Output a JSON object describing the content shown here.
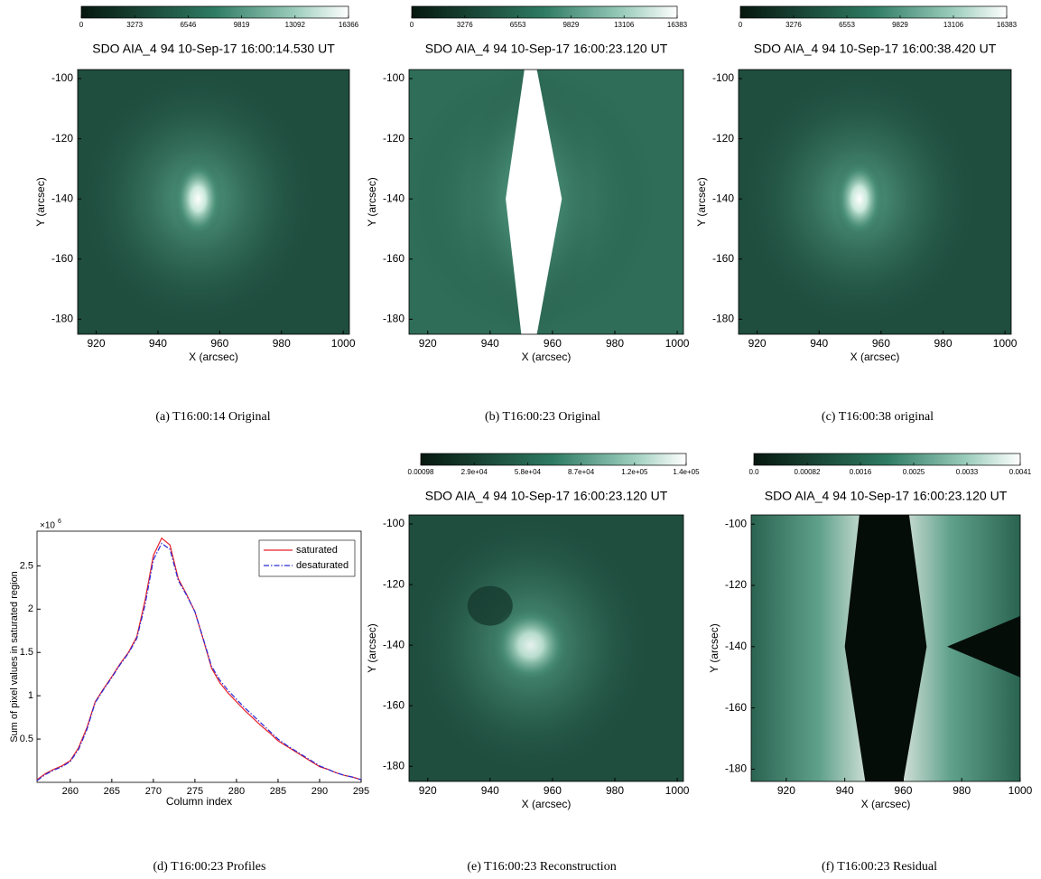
{
  "panels": [
    {
      "colorbar": {
        "lim": [
          0,
          16366
        ],
        "ticks": [
          0,
          3273,
          6546,
          9819,
          13092,
          16366
        ]
      },
      "title": "SDO AIA_4 94 10-Sep-17 16:00:14.530 UT",
      "xlabel": "X (arcsec)",
      "ylabel": "Y (arcsec)",
      "xlim": [
        914,
        1002
      ],
      "ylim": [
        -185,
        -97
      ],
      "xticks": [
        920,
        940,
        960,
        980,
        1000
      ],
      "yticks": [
        -180,
        -160,
        -140,
        -120,
        -100
      ],
      "caption": "(a)  T16:00:14 Original"
    },
    {
      "colorbar": {
        "lim": [
          0,
          16383
        ],
        "ticks": [
          0,
          3276,
          6553,
          9829,
          13106,
          16383
        ]
      },
      "title": "SDO AIA_4 94 10-Sep-17 16:00:23.120 UT",
      "xlabel": "X (arcsec)",
      "ylabel": "Y (arcsec)",
      "xlim": [
        914,
        1002
      ],
      "ylim": [
        -185,
        -97
      ],
      "xticks": [
        920,
        940,
        960,
        980,
        1000
      ],
      "yticks": [
        -180,
        -160,
        -140,
        -120,
        -100
      ],
      "caption": "(b)  T16:00:23 Original"
    },
    {
      "colorbar": {
        "lim": [
          0,
          16383
        ],
        "ticks": [
          0,
          3276,
          6553,
          9829,
          13106,
          16383
        ]
      },
      "title": "SDO AIA_4 94 10-Sep-17 16:00:38.420 UT",
      "xlabel": "X (arcsec)",
      "ylabel": "Y (arcsec)",
      "xlim": [
        914,
        1002
      ],
      "ylim": [
        -185,
        -97
      ],
      "xticks": [
        920,
        940,
        960,
        980,
        1000
      ],
      "yticks": [
        -180,
        -160,
        -140,
        -120,
        -100
      ],
      "caption": "(c)  T16:00:38 original"
    },
    {
      "colorbar": {
        "lim": [
          0.00098,
          144000
        ],
        "ticks": [
          0.00098,
          {
            "value": 29000,
            "label": "2.9e+04"
          },
          {
            "value": 58000,
            "label": "5.8e+04"
          },
          {
            "value": 87000,
            "label": "8.7e+04"
          },
          {
            "value": 116000,
            "label": "1.2e+05"
          },
          {
            "value": 144000,
            "label": "1.4e+05"
          }
        ]
      },
      "title": "SDO AIA_4 94 10-Sep-17 16:00:23.120 UT",
      "xlabel": "X (arcsec)",
      "ylabel": "Y (arcsec)",
      "xlim": [
        914,
        1002
      ],
      "ylim": [
        -185,
        -97
      ],
      "xticks": [
        920,
        940,
        960,
        980,
        1000
      ],
      "yticks": [
        -180,
        -160,
        -140,
        -120,
        -100
      ],
      "caption": "(e)  T16:00:23 Reconstruction"
    },
    {
      "colorbar": {
        "lim": [
          0,
          0.0041
        ],
        "ticks": [
          {
            "value": 0,
            "label": "0.0"
          },
          0.00082,
          {
            "value": 0.00164,
            "label": "0.0016"
          },
          {
            "value": 0.00246,
            "label": "0.0025"
          },
          {
            "value": 0.00328,
            "label": "0.0033"
          },
          0.0041
        ]
      },
      "title": "SDO AIA_4 94 10-Sep-17 16:00:23.120 UT",
      "xlabel": "X (arcsec)",
      "ylabel": "Y (arcsec)",
      "xlim": [
        908,
        1000
      ],
      "ylim": [
        -184,
        -97
      ],
      "xticks": [
        920,
        940,
        960,
        980,
        1000
      ],
      "yticks": [
        -180,
        -160,
        -140,
        -120,
        -100
      ],
      "caption": "(f)  T16:00:23 Residual"
    }
  ],
  "chart_data": {
    "type": "line",
    "caption": "(d)  T16:00:23 Profiles",
    "xlabel": "Column index",
    "ylabel": "Sum of pixel values in saturated region",
    "y_scale_base": "×10",
    "y_scale_exponent": "6",
    "x": [
      256,
      257,
      258,
      259,
      260,
      261,
      262,
      263,
      264,
      265,
      266,
      267,
      268,
      269,
      270,
      271,
      272,
      273,
      274,
      275,
      276,
      277,
      278,
      279,
      280,
      281,
      282,
      283,
      284,
      285,
      286,
      287,
      288,
      289,
      290,
      291,
      292,
      293,
      294,
      295
    ],
    "series": [
      {
        "name": "saturated",
        "color": "#e8202a",
        "dash": "solid",
        "values": [
          0.03,
          0.1,
          0.15,
          0.19,
          0.25,
          0.4,
          0.63,
          0.93,
          1.08,
          1.22,
          1.37,
          1.5,
          1.68,
          2.1,
          2.62,
          2.82,
          2.74,
          2.35,
          2.17,
          1.97,
          1.65,
          1.32,
          1.15,
          1.03,
          0.93,
          0.83,
          0.74,
          0.65,
          0.57,
          0.48,
          0.42,
          0.36,
          0.3,
          0.24,
          0.18,
          0.15,
          0.11,
          0.08,
          0.06,
          0.03
        ]
      },
      {
        "name": "desaturated",
        "color": "#2a2ad8",
        "dash": "dashdot",
        "values": [
          0.02,
          0.09,
          0.14,
          0.18,
          0.24,
          0.38,
          0.61,
          0.92,
          1.07,
          1.21,
          1.36,
          1.49,
          1.66,
          2.05,
          2.57,
          2.76,
          2.69,
          2.33,
          2.16,
          1.97,
          1.66,
          1.34,
          1.18,
          1.06,
          0.96,
          0.86,
          0.77,
          0.68,
          0.59,
          0.5,
          0.43,
          0.37,
          0.31,
          0.25,
          0.19,
          0.15,
          0.11,
          0.08,
          0.06,
          0.03
        ]
      }
    ],
    "xlim": [
      256,
      295
    ],
    "ylim": [
      0,
      2.9
    ],
    "xticks": [
      260,
      265,
      270,
      275,
      280,
      285,
      290,
      295
    ],
    "yticks": [
      0.5,
      1,
      1.5,
      2,
      2.5
    ],
    "legend": "upper right"
  }
}
